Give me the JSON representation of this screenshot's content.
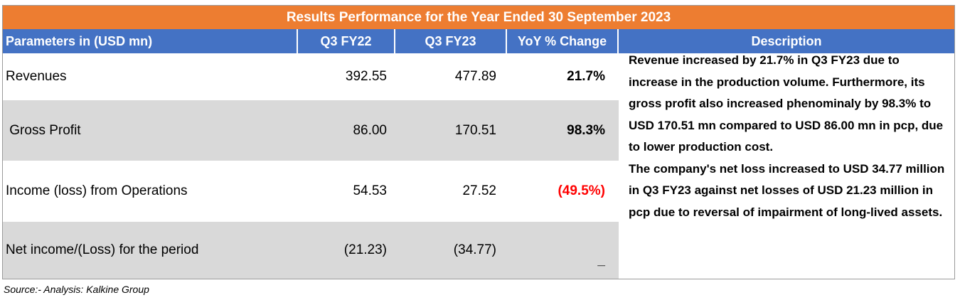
{
  "title": "Results Performance for the Year Ended 30 September 2023",
  "headers": {
    "param": "Parameters in (USD mn)",
    "q3fy22": "Q3 FY22",
    "q3fy23": "Q3 FY23",
    "yoy": "YoY % Change",
    "desc": "Description"
  },
  "rows": [
    {
      "label": "Revenues",
      "q3fy22": "392.55",
      "q3fy23": "477.89",
      "yoy": "21.7%"
    },
    {
      "label": " Gross Profit",
      "q3fy22": "86.00",
      "q3fy23": "170.51",
      "yoy": "98.3%"
    },
    {
      "label": "Income (loss) from Operations",
      "q3fy22": "54.53",
      "q3fy23": "27.52",
      "yoy": "(49.5%)"
    },
    {
      "label": "Net income/(Loss) for the period",
      "q3fy22": "(21.23)",
      "q3fy23": "(34.77)",
      "yoy": "_"
    }
  ],
  "description": [
    "Revenue increased  by 21.7% in Q3 FY23 due to increase in the production volume. Furthermore, its gross profit also increased phenominaly by 98.3% to USD 170.51 mn compared to USD 86.00 mn in pcp, due to lower production cost.",
    "The company's  net loss increased to  USD 34.77 million in  Q3 FY23  against net losses of  USD 21.23 million in pcp due to reversal of impairment of long-lived assets."
  ],
  "source": "Source:- Analysis: Kalkine Group",
  "colors": {
    "title_bg": "#ed7d31",
    "header_bg": "#4472c4",
    "gray_row": "#d9d9d9",
    "negative": "#ff0000"
  }
}
